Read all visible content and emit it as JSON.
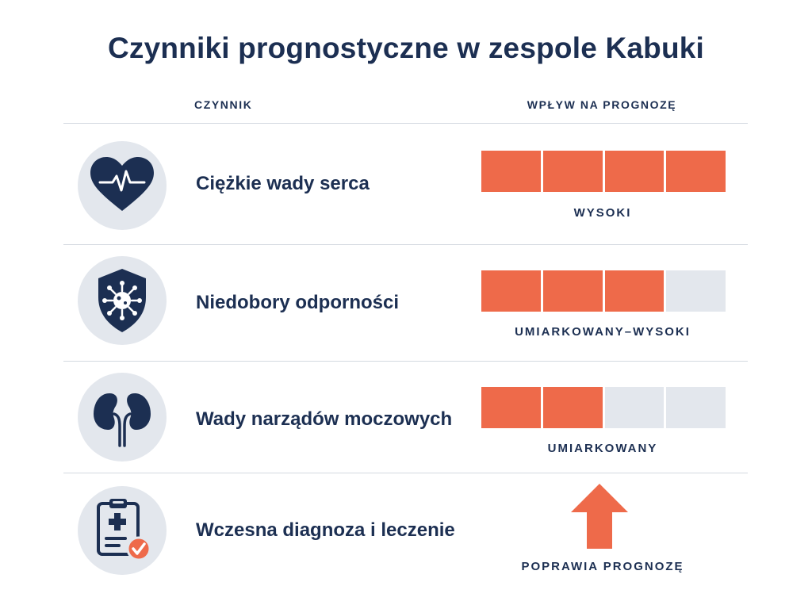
{
  "title": "Czynniki prognostyczne w zespole Kabuki",
  "columns": {
    "factor": "CZYNNIK",
    "impact": "WPŁYW NA PROGNOZĘ"
  },
  "colors": {
    "navy": "#1c2f52",
    "accent": "#ee6a4a",
    "inactive": "#e3e7ed"
  },
  "rows": [
    {
      "icon": "heart-pulse-icon",
      "label": "Ciężkie wady serca",
      "impact_level": 4,
      "impact_max": 4,
      "impact_label": "WYSOKI"
    },
    {
      "icon": "shield-virus-icon",
      "label": "Niedobory odporności",
      "impact_level": 3,
      "impact_max": 4,
      "impact_label": "UMIARKOWANY–WYSOKI"
    },
    {
      "icon": "kidneys-icon",
      "label": "Wady narządów moczowych",
      "impact_level": 2,
      "impact_max": 4,
      "impact_label": "UMIARKOWANY"
    },
    {
      "icon": "clipboard-check-icon",
      "label": "Wczesna diagnoza i leczenie",
      "impact_indicator": "arrow-up-icon",
      "impact_label": "POPRAWIA PROGNOZĘ"
    }
  ]
}
